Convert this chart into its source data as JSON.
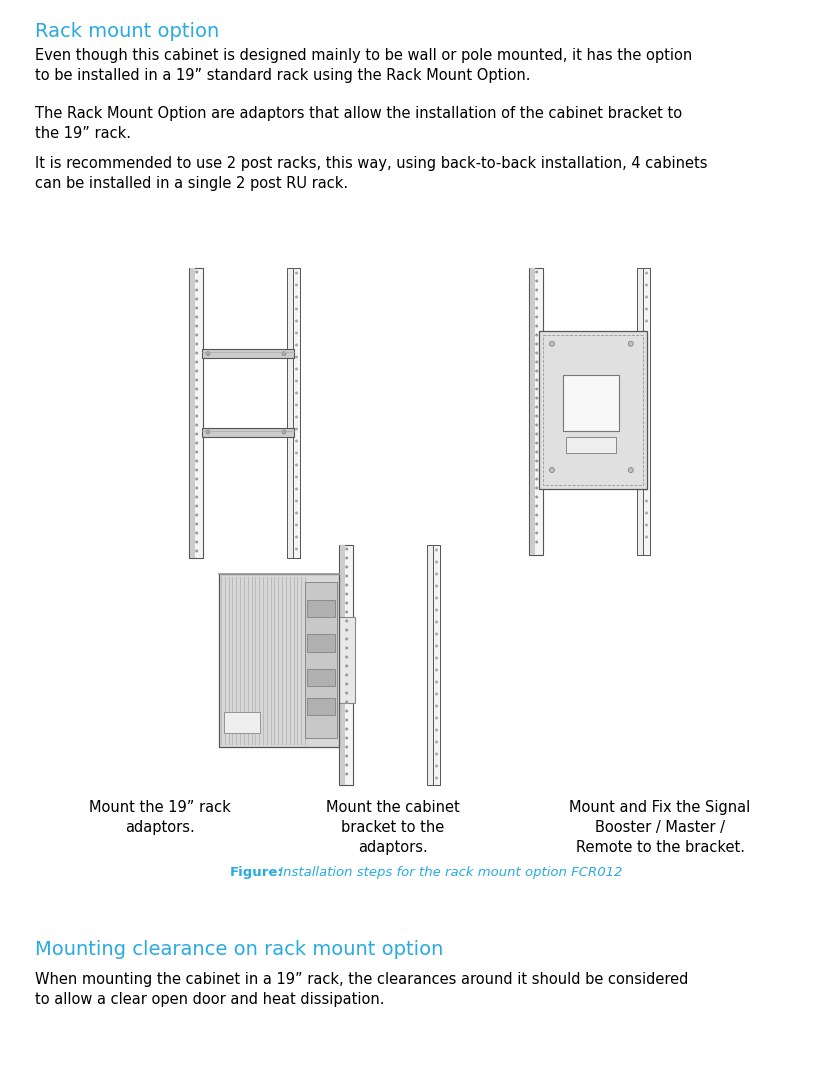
{
  "title1": "Rack mount option",
  "title1_color": "#29ABE2",
  "title1_fontsize": 14,
  "para1": "Even though this cabinet is designed mainly to be wall or pole mounted, it has the option\nto be installed in a 19” standard rack using the Rack Mount Option.",
  "para2": "The Rack Mount Option are adaptors that allow the installation of the cabinet bracket to\nthe 19” rack.",
  "para3": "It is recommended to use 2 post racks, this way, using back-to-back installation, 4 cabinets\ncan be installed in a single 2 post RU rack.",
  "caption_bold": "Figure:",
  "caption_italic": " Installation steps for the rack mount option FCR012",
  "caption_color": "#29ABE2",
  "caption_fontsize": 9.5,
  "label1": "Mount the 19” rack\nadaptors.",
  "label2": "Mount the cabinet\nbracket to the\nadaptors.",
  "label3": "Mount and Fix the Signal\nBooster / Master /\nRemote to the bracket.",
  "title2": "Mounting clearance on rack mount option",
  "title2_color": "#29ABE2",
  "title2_fontsize": 14,
  "para4": "When mounting the cabinet in a 19” rack, the clearances around it should be considered\nto allow a clear open door and heat dissipation.",
  "body_fontsize": 10.5,
  "body_color": "#000000",
  "background_color": "#ffffff",
  "label_fontsize": 10.5,
  "post_color": "#888888",
  "post_face": "#f5f5f5",
  "bar_color": "#aaaaaa",
  "bracket_face": "#dddddd",
  "line_color": "#555555"
}
